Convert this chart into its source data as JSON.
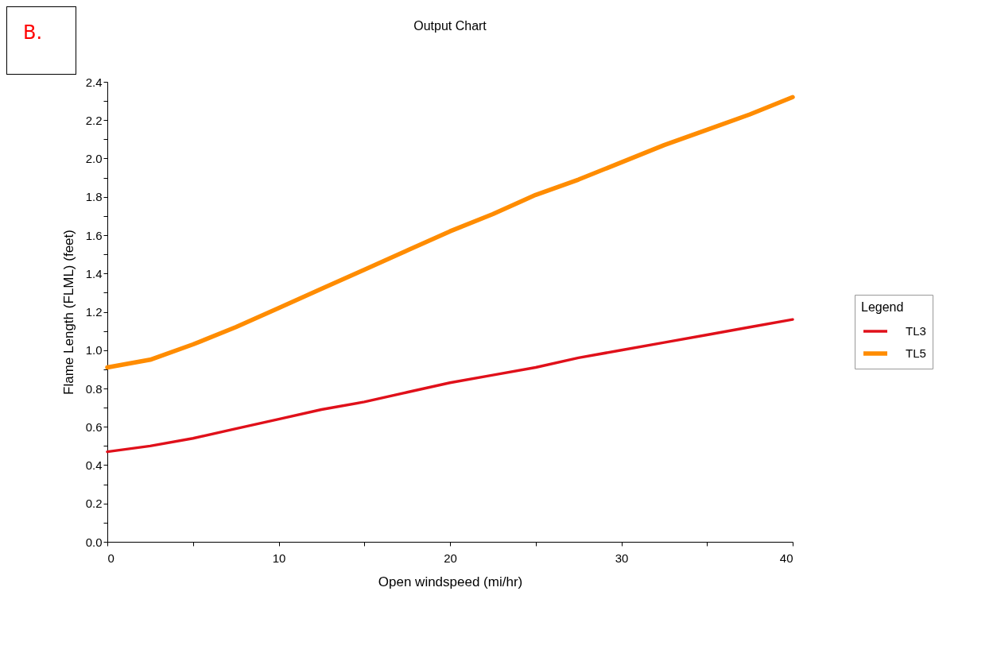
{
  "chart_data": {
    "type": "line",
    "title": "Output Chart",
    "xlabel": "Open windspeed (mi/hr)",
    "ylabel": "Flame Length (FLML) (feet)",
    "legend_title": "Legend",
    "annotations": [
      "B."
    ],
    "x": [
      0,
      2.5,
      5,
      7.5,
      10,
      12.5,
      15,
      17.5,
      20,
      22.5,
      25,
      27.5,
      30,
      32.5,
      35,
      37.5,
      40
    ],
    "series": [
      {
        "name": "TL3",
        "color": "#e0101a",
        "values": [
          0.47,
          0.5,
          0.54,
          0.59,
          0.64,
          0.69,
          0.73,
          0.78,
          0.83,
          0.87,
          0.91,
          0.96,
          1.0,
          1.04,
          1.08,
          1.12,
          1.16
        ]
      },
      {
        "name": "TL5",
        "color": "#ff8c00",
        "values": [
          0.91,
          0.95,
          1.03,
          1.12,
          1.22,
          1.32,
          1.42,
          1.52,
          1.62,
          1.71,
          1.81,
          1.89,
          1.98,
          2.07,
          2.15,
          2.23,
          2.32
        ]
      }
    ],
    "xlim": [
      0,
      40
    ],
    "xticks": [
      0,
      {
        "value": 5,
        "label": null
      },
      10,
      {
        "value": 15,
        "label": null
      },
      20,
      {
        "value": 25,
        "label": null
      },
      30,
      {
        "value": 35,
        "label": null
      },
      40
    ],
    "ylim": [
      0,
      2.4
    ],
    "yticks": [
      {
        "value": 0,
        "label": "0.0"
      },
      {
        "value": 0.1,
        "label": null
      },
      {
        "value": 0.2,
        "label": "0.2"
      },
      {
        "value": 0.3,
        "label": null
      },
      {
        "value": 0.4,
        "label": "0.4"
      },
      {
        "value": 0.5,
        "label": null
      },
      {
        "value": 0.6,
        "label": "0.6"
      },
      {
        "value": 0.7,
        "label": null
      },
      {
        "value": 0.8,
        "label": "0.8"
      },
      {
        "value": 0.9,
        "label": null
      },
      {
        "value": 1.0,
        "label": "1.0"
      },
      {
        "value": 1.1,
        "label": null
      },
      {
        "value": 1.2,
        "label": "1.2"
      },
      {
        "value": 1.3,
        "label": null
      },
      {
        "value": 1.4,
        "label": "1.4"
      },
      {
        "value": 1.5,
        "label": null
      },
      {
        "value": 1.6,
        "label": "1.6"
      },
      {
        "value": 1.7,
        "label": null
      },
      {
        "value": 1.8,
        "label": "1.8"
      },
      {
        "value": 1.9,
        "label": null
      },
      {
        "value": 2.0,
        "label": "2.0"
      },
      {
        "value": 2.1,
        "label": null
      },
      {
        "value": 2.2,
        "label": "2.2"
      },
      {
        "value": 2.3,
        "label": null
      },
      {
        "value": 2.4,
        "label": "2.4"
      }
    ],
    "grid": false,
    "legend": "right",
    "marker": "none",
    "line_style": "solid"
  }
}
